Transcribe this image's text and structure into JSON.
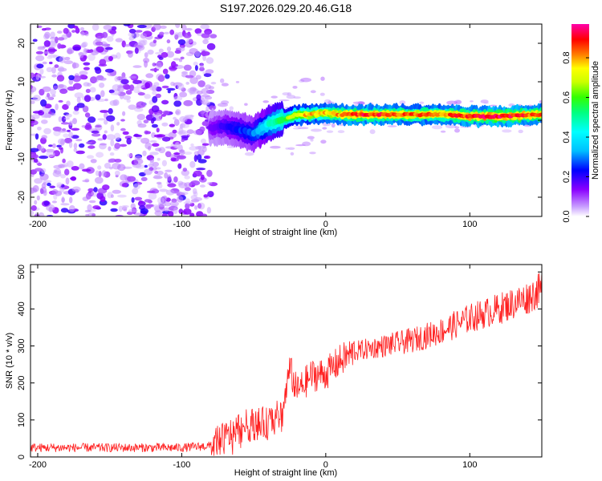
{
  "figure_title": "S197.2026.029.20.46.G18",
  "chart_data": [
    {
      "type": "heatmap",
      "title": "S197.2026.029.20.46.G18",
      "xlabel": "Height of straight line (km)",
      "ylabel": "Frequency (Hz)",
      "xlim": [
        -205,
        150
      ],
      "ylim": [
        -25,
        25
      ],
      "x_ticks": [
        -200,
        -100,
        0,
        100
      ],
      "y_ticks": [
        -20,
        -10,
        0,
        10,
        20
      ],
      "colorbar": {
        "label": "Normalized spectral amplitude",
        "range": [
          0,
          0.97
        ],
        "ticks": [
          0,
          0.2,
          0.4,
          0.6,
          0.8
        ],
        "tick_labels": [
          "0.0",
          "0.2",
          "0.4",
          "0.6",
          "0.8"
        ],
        "colors": [
          "#ffffff",
          "#d9b3ff",
          "#8a00ff",
          "#0000ff",
          "#00bfff",
          "#00ffff",
          "#00ff80",
          "#33ff00",
          "#ccff00",
          "#ffff00",
          "#ff8000",
          "#ff0000",
          "#ff00aa"
        ]
      },
      "noise_region": {
        "x_range": [
          -205,
          -78
        ],
        "freq_range": [
          -25,
          25
        ],
        "typical_amplitude": 0.15
      },
      "signal_track": {
        "x": [
          -80,
          -70,
          -60,
          -50,
          -40,
          -30,
          -20,
          -10,
          0,
          10,
          20,
          40,
          60,
          80,
          100,
          120,
          150
        ],
        "frequency": [
          -2,
          -1.5,
          -2.5,
          -3.5,
          -1,
          0,
          1.5,
          1.5,
          2,
          1.5,
          1.5,
          1.5,
          1.5,
          1.5,
          1,
          1,
          1.5
        ],
        "amplitude": [
          0.15,
          0.2,
          0.25,
          0.3,
          0.45,
          0.6,
          0.75,
          0.8,
          0.8,
          0.85,
          0.9,
          0.9,
          0.85,
          0.85,
          0.9,
          0.95,
          0.85
        ]
      }
    },
    {
      "type": "line",
      "title": "",
      "xlabel": "Height of straight line (km)",
      "ylabel": "SNR (10 * v/v)",
      "xlim": [
        -205,
        150
      ],
      "ylim": [
        0,
        520
      ],
      "x_ticks": [
        -200,
        -100,
        0,
        100
      ],
      "y_ticks": [
        0,
        100,
        200,
        300,
        400,
        500
      ],
      "series": [
        {
          "name": "SNR",
          "color": "#ff0000",
          "x": [
            -205,
            -180,
            -150,
            -120,
            -100,
            -80,
            -70,
            -60,
            -50,
            -40,
            -30,
            -25,
            -20,
            -10,
            0,
            10,
            20,
            40,
            60,
            80,
            100,
            120,
            140,
            150
          ],
          "values": [
            25,
            25,
            25,
            25,
            25,
            30,
            50,
            80,
            90,
            90,
            120,
            240,
            175,
            220,
            225,
            260,
            285,
            300,
            315,
            340,
            375,
            400,
            430,
            455
          ]
        }
      ]
    }
  ]
}
